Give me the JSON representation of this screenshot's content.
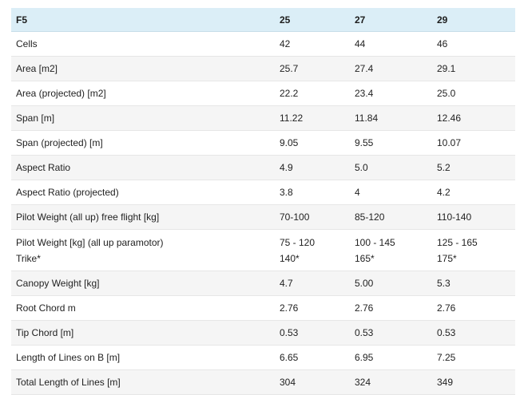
{
  "table": {
    "headers": [
      "F5",
      "25",
      "27",
      "29"
    ],
    "rows": [
      {
        "label": [
          "Cells"
        ],
        "v1": [
          "42"
        ],
        "v2": [
          "44"
        ],
        "v3": [
          "46"
        ]
      },
      {
        "label": [
          "Area [m2]"
        ],
        "v1": [
          "25.7"
        ],
        "v2": [
          "27.4"
        ],
        "v3": [
          "29.1"
        ]
      },
      {
        "label": [
          "Area (projected) [m2]"
        ],
        "v1": [
          "22.2"
        ],
        "v2": [
          "23.4"
        ],
        "v3": [
          "25.0"
        ]
      },
      {
        "label": [
          "Span [m]"
        ],
        "v1": [
          "11.22"
        ],
        "v2": [
          "11.84"
        ],
        "v3": [
          "12.46"
        ]
      },
      {
        "label": [
          "Span (projected) [m]"
        ],
        "v1": [
          "9.05"
        ],
        "v2": [
          "9.55"
        ],
        "v3": [
          "10.07"
        ]
      },
      {
        "label": [
          "Aspect Ratio"
        ],
        "v1": [
          "4.9"
        ],
        "v2": [
          "5.0"
        ],
        "v3": [
          "5.2"
        ]
      },
      {
        "label": [
          "Aspect Ratio (projected)"
        ],
        "v1": [
          "3.8"
        ],
        "v2": [
          "4"
        ],
        "v3": [
          "4.2"
        ]
      },
      {
        "label": [
          "Pilot Weight (all up) free flight [kg]"
        ],
        "v1": [
          "70-100"
        ],
        "v2": [
          "85-120"
        ],
        "v3": [
          "110-140"
        ]
      },
      {
        "label": [
          "Pilot Weight [kg] (all up paramotor)",
          "Trike*"
        ],
        "v1": [
          "75 - 120",
          "140*"
        ],
        "v2": [
          "100 - 145",
          "165*"
        ],
        "v3": [
          "125 - 165",
          "175*"
        ]
      },
      {
        "label": [
          "Canopy Weight [kg]"
        ],
        "v1": [
          "4.7"
        ],
        "v2": [
          "5.00"
        ],
        "v3": [
          "5.3"
        ]
      },
      {
        "label": [
          "Root Chord m"
        ],
        "v1": [
          "2.76"
        ],
        "v2": [
          "2.76"
        ],
        "v3": [
          "2.76"
        ]
      },
      {
        "label": [
          "Tip Chord [m]"
        ],
        "v1": [
          "0.53"
        ],
        "v2": [
          "0.53"
        ],
        "v3": [
          "0.53"
        ]
      },
      {
        "label": [
          "Length of Lines on B [m]"
        ],
        "v1": [
          "6.65"
        ],
        "v2": [
          "6.95"
        ],
        "v3": [
          "7.25"
        ]
      },
      {
        "label": [
          "Total Length of Lines [m]"
        ],
        "v1": [
          "304"
        ],
        "v2": [
          "324"
        ],
        "v3": [
          "349"
        ]
      }
    ]
  }
}
